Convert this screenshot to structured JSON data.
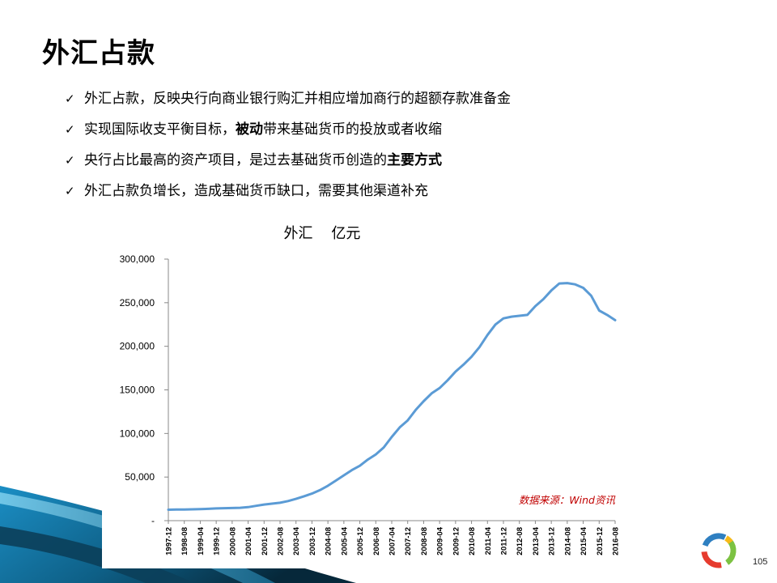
{
  "slide": {
    "title": "外汇占款",
    "page_number": "105"
  },
  "bullets": [
    {
      "segments": [
        {
          "text": "外汇占款，反映央行向商业银行购汇并相应增加商行的超额存款准备金",
          "bold": false
        }
      ]
    },
    {
      "segments": [
        {
          "text": "实现国际收支平衡目标，",
          "bold": false
        },
        {
          "text": "被动",
          "bold": true
        },
        {
          "text": "带来基础货币的投放或者收缩",
          "bold": false
        }
      ]
    },
    {
      "segments": [
        {
          "text": "央行占比最高的资产项目，是过去基础货币创造的",
          "bold": false
        },
        {
          "text": "主要方式",
          "bold": true
        }
      ]
    },
    {
      "segments": [
        {
          "text": "外汇占款负增长，造成基础货币缺口，需要其他渠道补充",
          "bold": false
        }
      ]
    }
  ],
  "bullet_marker": "✓",
  "chart_data": {
    "type": "line",
    "title": "外汇    亿元",
    "source_note": "数据来源：Wind资讯",
    "line_color": "#5b9bd5",
    "ylim": [
      0,
      300000
    ],
    "y_ticks": [
      {
        "value": 0,
        "label": "-"
      },
      {
        "value": 50000,
        "label": "50,000"
      },
      {
        "value": 100000,
        "label": "100,000"
      },
      {
        "value": 150000,
        "label": "150,000"
      },
      {
        "value": 200000,
        "label": "200,000"
      },
      {
        "value": 250000,
        "label": "250,000"
      },
      {
        "value": 300000,
        "label": "300,000"
      }
    ],
    "x_tick_labels": [
      "1997-12",
      "1998-08",
      "1999-04",
      "1999-12",
      "2000-08",
      "2001-04",
      "2001-12",
      "2002-08",
      "2003-04",
      "2003-12",
      "2004-08",
      "2005-04",
      "2005-12",
      "2006-08",
      "2007-04",
      "2007-12",
      "2008-08",
      "2009-04",
      "2009-12",
      "2010-08",
      "2011-04",
      "2011-12",
      "2012-08",
      "2013-04",
      "2013-12",
      "2014-08",
      "2015-04",
      "2015-12",
      "2016-08"
    ],
    "series": [
      {
        "points": [
          [
            "1997-12",
            12500
          ],
          [
            "1998-04",
            12700
          ],
          [
            "1998-08",
            12800
          ],
          [
            "1998-12",
            13000
          ],
          [
            "1999-04",
            13200
          ],
          [
            "1999-08",
            13600
          ],
          [
            "1999-12",
            14000
          ],
          [
            "2000-04",
            14300
          ],
          [
            "2000-08",
            14500
          ],
          [
            "2000-12",
            14800
          ],
          [
            "2001-04",
            15500
          ],
          [
            "2001-08",
            17000
          ],
          [
            "2001-12",
            18500
          ],
          [
            "2002-04",
            19500
          ],
          [
            "2002-08",
            20500
          ],
          [
            "2002-12",
            22500
          ],
          [
            "2003-04",
            25000
          ],
          [
            "2003-08",
            28000
          ],
          [
            "2003-12",
            31000
          ],
          [
            "2004-04",
            35000
          ],
          [
            "2004-08",
            40000
          ],
          [
            "2004-12",
            46000
          ],
          [
            "2005-04",
            52000
          ],
          [
            "2005-08",
            58000
          ],
          [
            "2005-12",
            63000
          ],
          [
            "2006-04",
            70000
          ],
          [
            "2006-08",
            76000
          ],
          [
            "2006-12",
            84000
          ],
          [
            "2007-04",
            96000
          ],
          [
            "2007-08",
            107000
          ],
          [
            "2007-12",
            115000
          ],
          [
            "2008-04",
            127000
          ],
          [
            "2008-08",
            137000
          ],
          [
            "2008-12",
            146000
          ],
          [
            "2009-04",
            152000
          ],
          [
            "2009-08",
            161000
          ],
          [
            "2009-12",
            171000
          ],
          [
            "2010-04",
            179000
          ],
          [
            "2010-08",
            188000
          ],
          [
            "2010-12",
            199000
          ],
          [
            "2011-04",
            213000
          ],
          [
            "2011-08",
            225000
          ],
          [
            "2011-12",
            232000
          ],
          [
            "2012-04",
            234000
          ],
          [
            "2012-08",
            235000
          ],
          [
            "2012-12",
            236000
          ],
          [
            "2013-04",
            246000
          ],
          [
            "2013-08",
            254000
          ],
          [
            "2013-12",
            264000
          ],
          [
            "2014-04",
            272000
          ],
          [
            "2014-08",
            272500
          ],
          [
            "2014-12",
            271000
          ],
          [
            "2015-04",
            267000
          ],
          [
            "2015-08",
            258000
          ],
          [
            "2015-12",
            241000
          ],
          [
            "2016-04",
            236000
          ],
          [
            "2016-08",
            230000
          ]
        ]
      }
    ]
  }
}
